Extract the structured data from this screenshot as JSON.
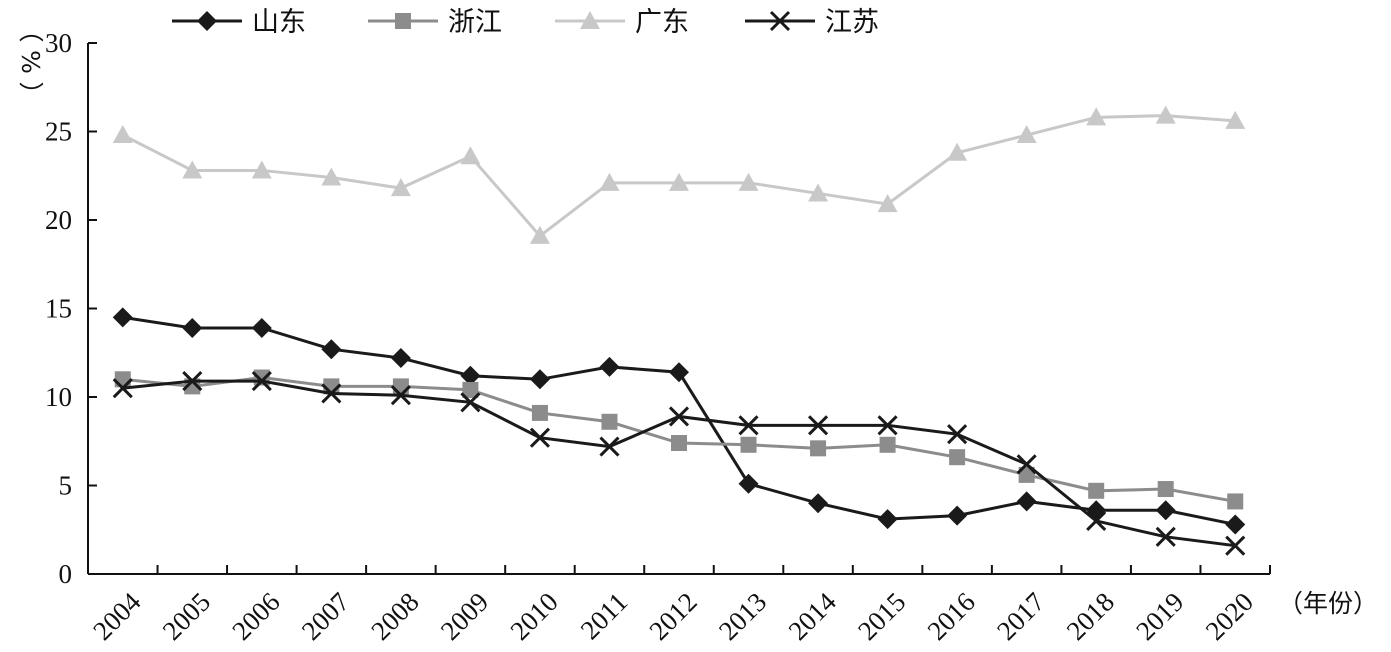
{
  "chart_data": {
    "type": "line",
    "y_unit": "%",
    "x_unit": "（年份）",
    "ylim": [
      0,
      30
    ],
    "yticks": [
      0,
      5,
      10,
      15,
      20,
      25,
      30
    ],
    "grid": false,
    "legend_position": "top",
    "categories": [
      "2004",
      "2005",
      "2006",
      "2007",
      "2008",
      "2009",
      "2010",
      "2011",
      "2012",
      "2013",
      "2014",
      "2015",
      "2016",
      "2017",
      "2018",
      "2019",
      "2020"
    ],
    "series": [
      {
        "name": "山东",
        "marker": "diamond",
        "color": "#1a1a1a",
        "values": [
          14.5,
          13.9,
          13.9,
          12.7,
          12.2,
          11.2,
          11.0,
          11.7,
          11.4,
          5.1,
          4.0,
          3.1,
          3.3,
          4.1,
          3.6,
          3.6,
          2.8
        ]
      },
      {
        "name": "浙江",
        "marker": "square",
        "color": "#8c8c8c",
        "values": [
          11.0,
          10.6,
          11.1,
          10.6,
          10.6,
          10.4,
          9.1,
          8.6,
          7.4,
          7.3,
          7.1,
          7.3,
          6.6,
          5.6,
          4.7,
          4.8,
          4.1
        ]
      },
      {
        "name": "广东",
        "marker": "triangle",
        "color": "#c8c8c8",
        "values": [
          24.8,
          22.8,
          22.8,
          22.4,
          21.8,
          23.6,
          19.1,
          22.1,
          22.1,
          22.1,
          21.5,
          20.9,
          23.8,
          24.8,
          25.8,
          25.9,
          25.6
        ]
      },
      {
        "name": "江苏",
        "marker": "x",
        "color": "#1a1a1a",
        "values": [
          10.5,
          10.9,
          10.9,
          10.2,
          10.1,
          9.7,
          7.7,
          7.2,
          8.9,
          8.4,
          8.4,
          8.4,
          7.9,
          6.2,
          3.0,
          2.1,
          1.6
        ]
      }
    ]
  }
}
